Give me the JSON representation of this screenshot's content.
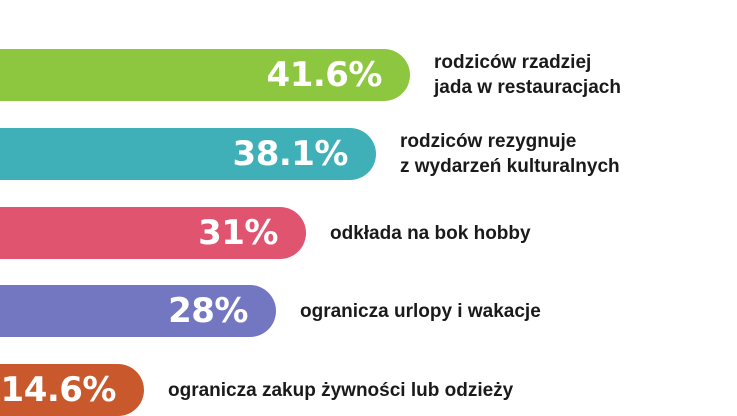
{
  "chart_data": {
    "type": "bar",
    "orientation": "horizontal",
    "title": "",
    "xlabel": "",
    "ylabel": "",
    "xlim": [
      0,
      41.6
    ],
    "grid": false,
    "categories": [
      "rodziców rzadziej\njada w restauracjach",
      "rodziców rezygnuje\nz wydarzeń kulturalnych",
      "odkłada na bok hobby",
      "ogranicza urlopy i wakacje",
      "ogranicza zakup żywności lub odzieży"
    ],
    "values": [
      41.6,
      38.1,
      31,
      28,
      14.6
    ],
    "value_labels": [
      "41.6%",
      "38.1%",
      "31%",
      "28%",
      "14.6%"
    ],
    "colors": [
      "#8dc63f",
      "#3fb0b7",
      "#e05470",
      "#7376c0",
      "#c9582c"
    ]
  }
}
